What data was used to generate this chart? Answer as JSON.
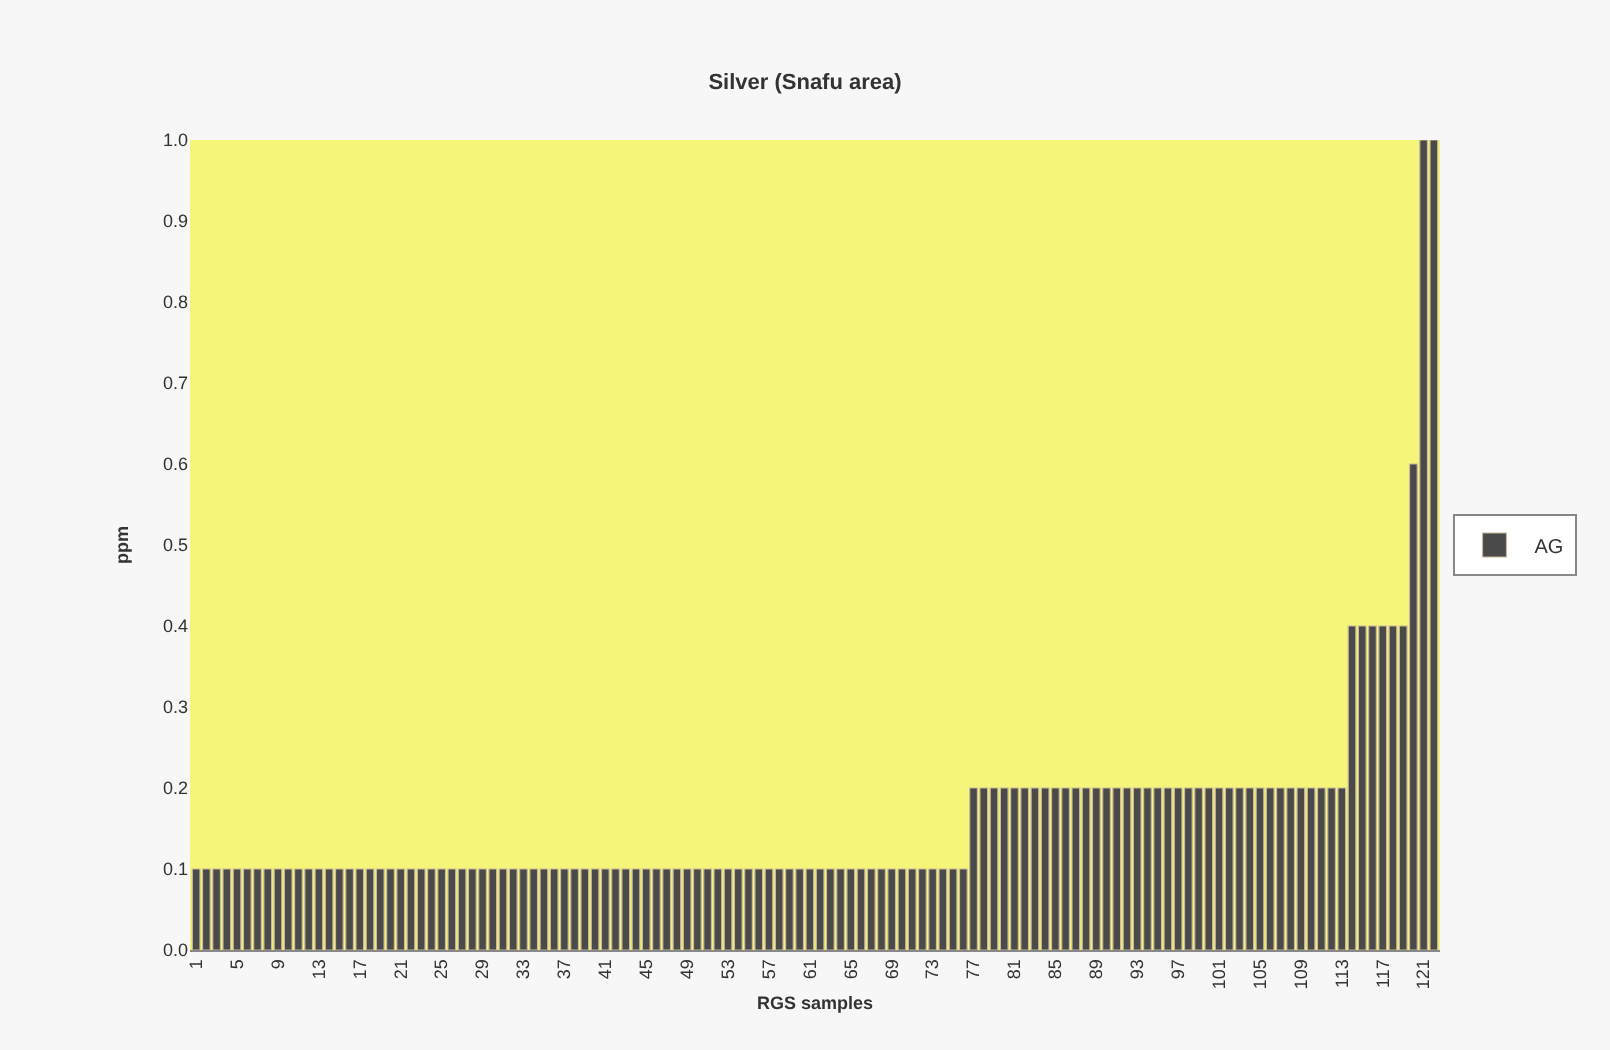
{
  "chart_data": {
    "type": "bar",
    "title": "Silver (Snafu area)",
    "xlabel": "RGS samples",
    "ylabel": "ppm",
    "categories": [
      "1",
      null,
      null,
      null,
      "5",
      null,
      null,
      null,
      "9",
      null,
      null,
      null,
      "13",
      null,
      null,
      null,
      "17",
      null,
      null,
      null,
      "21",
      null,
      null,
      null,
      "25",
      null,
      null,
      null,
      "29",
      null,
      null,
      null,
      "33",
      null,
      null,
      null,
      "37",
      null,
      null,
      null,
      "41",
      null,
      null,
      null,
      "45",
      null,
      null,
      null,
      "49",
      null,
      null,
      null,
      "53",
      null,
      null,
      null,
      "57",
      null,
      null,
      null,
      "61",
      null,
      null,
      null,
      "65",
      null,
      null,
      null,
      "69",
      null,
      null,
      null,
      "73",
      null,
      null,
      null,
      "77",
      null,
      null,
      null,
      "81",
      null,
      null,
      null,
      "85",
      null,
      null,
      null,
      "89",
      null,
      null,
      null,
      "93",
      null,
      null,
      null,
      "97",
      null,
      null,
      null,
      "101",
      null,
      null,
      null,
      "105",
      null,
      null,
      null,
      "109",
      null,
      null,
      null,
      "113",
      null,
      null,
      null,
      "117",
      null,
      null,
      null,
      "121",
      null
    ],
    "series": [
      {
        "name": "AG",
        "color": "#4a4a4a",
        "values": [
          0.1,
          0.1,
          0.1,
          0.1,
          0.1,
          0.1,
          0.1,
          0.1,
          0.1,
          0.1,
          0.1,
          0.1,
          0.1,
          0.1,
          0.1,
          0.1,
          0.1,
          0.1,
          0.1,
          0.1,
          0.1,
          0.1,
          0.1,
          0.1,
          0.1,
          0.1,
          0.1,
          0.1,
          0.1,
          0.1,
          0.1,
          0.1,
          0.1,
          0.1,
          0.1,
          0.1,
          0.1,
          0.1,
          0.1,
          0.1,
          0.1,
          0.1,
          0.1,
          0.1,
          0.1,
          0.1,
          0.1,
          0.1,
          0.1,
          0.1,
          0.1,
          0.1,
          0.1,
          0.1,
          0.1,
          0.1,
          0.1,
          0.1,
          0.1,
          0.1,
          0.1,
          0.1,
          0.1,
          0.1,
          0.1,
          0.1,
          0.1,
          0.1,
          0.1,
          0.1,
          0.1,
          0.1,
          0.1,
          0.1,
          0.1,
          0.1,
          0.2,
          0.2,
          0.2,
          0.2,
          0.2,
          0.2,
          0.2,
          0.2,
          0.2,
          0.2,
          0.2,
          0.2,
          0.2,
          0.2,
          0.2,
          0.2,
          0.2,
          0.2,
          0.2,
          0.2,
          0.2,
          0.2,
          0.2,
          0.2,
          0.2,
          0.2,
          0.2,
          0.2,
          0.2,
          0.2,
          0.2,
          0.2,
          0.2,
          0.2,
          0.2,
          0.2,
          0.2,
          0.4,
          0.4,
          0.4,
          0.4,
          0.4,
          0.4,
          0.6,
          1.0,
          1.0
        ]
      }
    ],
    "ylim": [
      0,
      1.0
    ],
    "yticks": [
      {
        "value": 0,
        "label": "0.0"
      },
      0.1,
      0.2,
      0.3,
      0.4,
      0.5,
      0.6,
      0.7,
      0.8,
      0.9,
      {
        "value": 1.0,
        "label": "1.0"
      }
    ],
    "grid": false,
    "legend": "right"
  }
}
